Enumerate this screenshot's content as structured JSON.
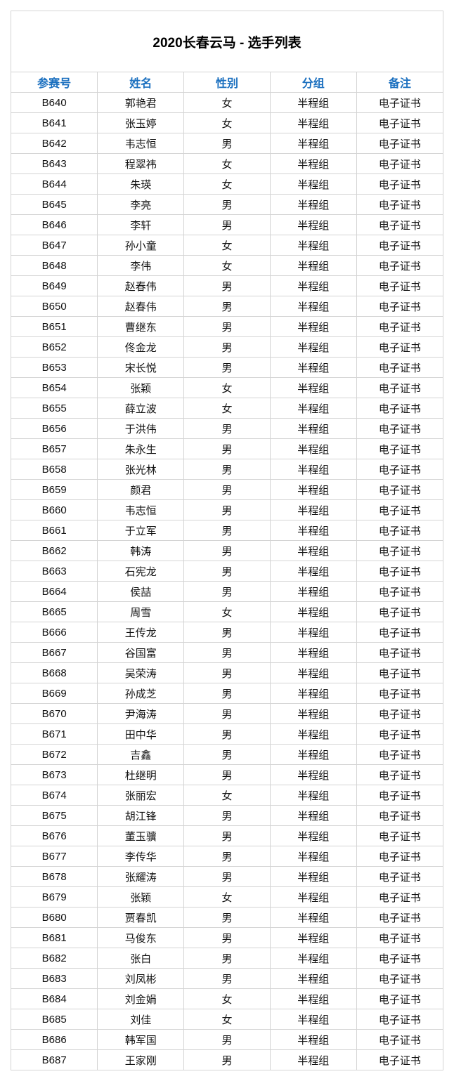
{
  "title": "2020长春云马 - 选手列表",
  "colors": {
    "header_text": "#1a6fbf",
    "border": "#d4d4d4"
  },
  "columns": [
    "参赛号",
    "姓名",
    "性别",
    "分组",
    "备注"
  ],
  "rows": [
    [
      "B640",
      "郭艳君",
      "女",
      "半程组",
      "电子证书"
    ],
    [
      "B641",
      "张玉婷",
      "女",
      "半程组",
      "电子证书"
    ],
    [
      "B642",
      "韦志恒",
      "男",
      "半程组",
      "电子证书"
    ],
    [
      "B643",
      "程翠祎",
      "女",
      "半程组",
      "电子证书"
    ],
    [
      "B644",
      "朱瑛",
      "女",
      "半程组",
      "电子证书"
    ],
    [
      "B645",
      "李亮",
      "男",
      "半程组",
      "电子证书"
    ],
    [
      "B646",
      "李轩",
      "男",
      "半程组",
      "电子证书"
    ],
    [
      "B647",
      "孙小童",
      "女",
      "半程组",
      "电子证书"
    ],
    [
      "B648",
      "李伟",
      "女",
      "半程组",
      "电子证书"
    ],
    [
      "B649",
      "赵春伟",
      "男",
      "半程组",
      "电子证书"
    ],
    [
      "B650",
      "赵春伟",
      "男",
      "半程组",
      "电子证书"
    ],
    [
      "B651",
      "曹继东",
      "男",
      "半程组",
      "电子证书"
    ],
    [
      "B652",
      "佟金龙",
      "男",
      "半程组",
      "电子证书"
    ],
    [
      "B653",
      "宋长悦",
      "男",
      "半程组",
      "电子证书"
    ],
    [
      "B654",
      "张颖",
      "女",
      "半程组",
      "电子证书"
    ],
    [
      "B655",
      "薛立波",
      "女",
      "半程组",
      "电子证书"
    ],
    [
      "B656",
      "于洪伟",
      "男",
      "半程组",
      "电子证书"
    ],
    [
      "B657",
      "朱永生",
      "男",
      "半程组",
      "电子证书"
    ],
    [
      "B658",
      "张光林",
      "男",
      "半程组",
      "电子证书"
    ],
    [
      "B659",
      "颜君",
      "男",
      "半程组",
      "电子证书"
    ],
    [
      "B660",
      "韦志恒",
      "男",
      "半程组",
      "电子证书"
    ],
    [
      "B661",
      "于立军",
      "男",
      "半程组",
      "电子证书"
    ],
    [
      "B662",
      "韩涛",
      "男",
      "半程组",
      "电子证书"
    ],
    [
      "B663",
      "石宪龙",
      "男",
      "半程组",
      "电子证书"
    ],
    [
      "B664",
      "侯喆",
      "男",
      "半程组",
      "电子证书"
    ],
    [
      "B665",
      "周雪",
      "女",
      "半程组",
      "电子证书"
    ],
    [
      "B666",
      "王传龙",
      "男",
      "半程组",
      "电子证书"
    ],
    [
      "B667",
      "谷国富",
      "男",
      "半程组",
      "电子证书"
    ],
    [
      "B668",
      "吴荣涛",
      "男",
      "半程组",
      "电子证书"
    ],
    [
      "B669",
      "孙成芝",
      "男",
      "半程组",
      "电子证书"
    ],
    [
      "B670",
      "尹海涛",
      "男",
      "半程组",
      "电子证书"
    ],
    [
      "B671",
      "田中华",
      "男",
      "半程组",
      "电子证书"
    ],
    [
      "B672",
      "吉鑫",
      "男",
      "半程组",
      "电子证书"
    ],
    [
      "B673",
      "杜继明",
      "男",
      "半程组",
      "电子证书"
    ],
    [
      "B674",
      "张丽宏",
      "女",
      "半程组",
      "电子证书"
    ],
    [
      "B675",
      "胡江锋",
      "男",
      "半程组",
      "电子证书"
    ],
    [
      "B676",
      "董玉骥",
      "男",
      "半程组",
      "电子证书"
    ],
    [
      "B677",
      "李传华",
      "男",
      "半程组",
      "电子证书"
    ],
    [
      "B678",
      "张耀涛",
      "男",
      "半程组",
      "电子证书"
    ],
    [
      "B679",
      "张颖",
      "女",
      "半程组",
      "电子证书"
    ],
    [
      "B680",
      "贾春凯",
      "男",
      "半程组",
      "电子证书"
    ],
    [
      "B681",
      "马俊东",
      "男",
      "半程组",
      "电子证书"
    ],
    [
      "B682",
      "张白",
      "男",
      "半程组",
      "电子证书"
    ],
    [
      "B683",
      "刘凤彬",
      "男",
      "半程组",
      "电子证书"
    ],
    [
      "B684",
      "刘金娟",
      "女",
      "半程组",
      "电子证书"
    ],
    [
      "B685",
      "刘佳",
      "女",
      "半程组",
      "电子证书"
    ],
    [
      "B686",
      "韩军国",
      "男",
      "半程组",
      "电子证书"
    ],
    [
      "B687",
      "王家刚",
      "男",
      "半程组",
      "电子证书"
    ]
  ]
}
